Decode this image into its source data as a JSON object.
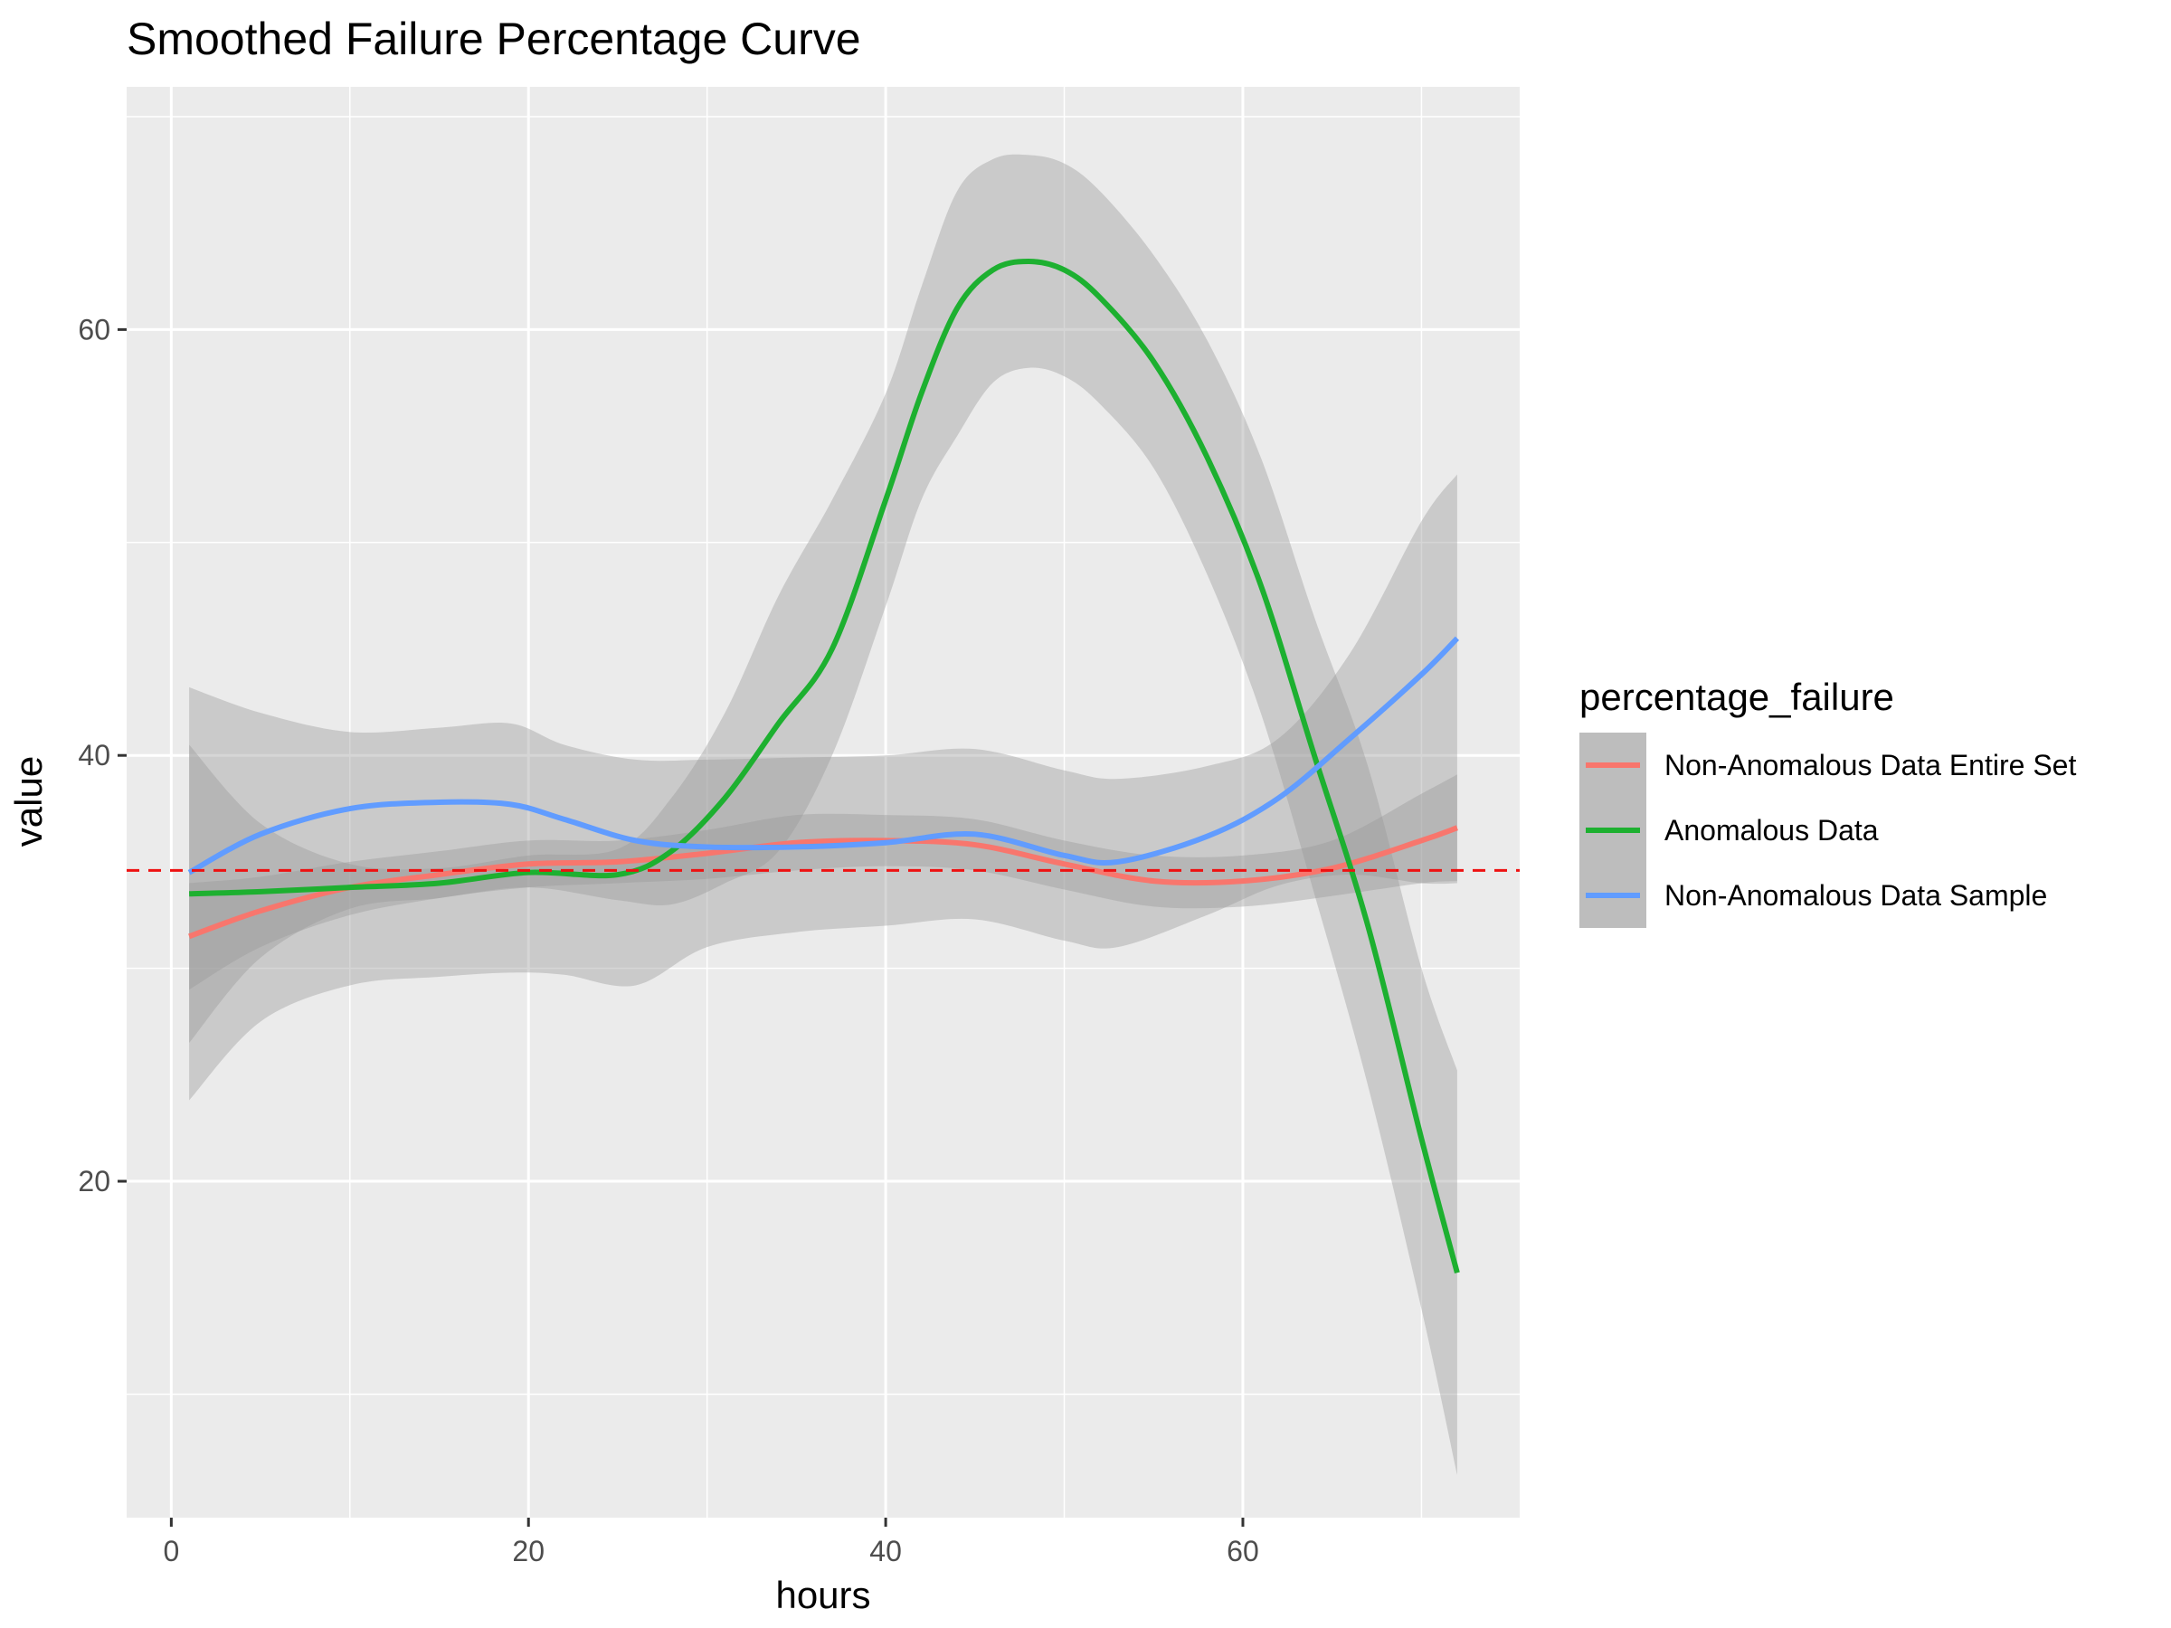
{
  "chart_data": {
    "type": "line",
    "title": "Smoothed Failure Percentage Curve",
    "xlabel": "hours",
    "ylabel": "value",
    "xlim": [
      -2.5,
      75.5
    ],
    "ylim": [
      4.2,
      71.4
    ],
    "x_ticks": [
      0,
      20,
      40,
      60
    ],
    "y_ticks": [
      20,
      40,
      60
    ],
    "grid": true,
    "reference_line": {
      "y": 34.6,
      "color": "#ee1111",
      "style": "dashed"
    },
    "legend": {
      "title": "percentage_failure",
      "position": "right"
    },
    "series": [
      {
        "name": "Non-Anomalous Data Entire Set",
        "color": "#f8766d",
        "x": [
          1,
          5,
          10,
          15,
          20,
          25,
          30,
          35,
          40,
          45,
          50,
          55,
          60,
          65,
          70,
          72
        ],
        "y": [
          31.5,
          32.7,
          33.8,
          34.4,
          34.9,
          35.0,
          35.4,
          35.9,
          36.0,
          35.8,
          34.9,
          34.1,
          34.1,
          34.7,
          36.0,
          36.6
        ],
        "ci_lower": [
          29.0,
          31.0,
          32.5,
          33.3,
          33.8,
          34.0,
          34.2,
          34.6,
          34.8,
          34.6,
          33.7,
          32.9,
          32.9,
          33.4,
          34.0,
          34.1
        ],
        "ci_upper": [
          34.0,
          34.3,
          35.0,
          35.5,
          36.0,
          36.0,
          36.5,
          37.2,
          37.2,
          37.0,
          36.0,
          35.3,
          35.3,
          36.0,
          38.2,
          39.1
        ]
      },
      {
        "name": "Anomalous Data",
        "color": "#1db030",
        "x": [
          1,
          5,
          10,
          15,
          20,
          25,
          28,
          31,
          34,
          37,
          40,
          42,
          44,
          46,
          48,
          50,
          52,
          55,
          58,
          61,
          64,
          67,
          70,
          72
        ],
        "y": [
          33.5,
          33.6,
          33.8,
          34.0,
          34.5,
          34.4,
          35.5,
          38.0,
          41.5,
          45.0,
          52.0,
          57.0,
          61.0,
          62.8,
          63.2,
          62.8,
          61.5,
          58.5,
          54.0,
          48.0,
          40.0,
          32.0,
          22.0,
          15.7
        ],
        "ci_lower": [
          26.5,
          30.5,
          32.8,
          33.3,
          33.8,
          33.2,
          33.0,
          34.0,
          35.5,
          40.0,
          47.0,
          52.0,
          55.0,
          57.5,
          58.2,
          57.8,
          56.5,
          53.5,
          48.5,
          42.0,
          33.5,
          24.5,
          14.0,
          6.2
        ],
        "ci_upper": [
          40.5,
          36.8,
          34.9,
          34.7,
          35.3,
          35.6,
          38.0,
          42.0,
          47.5,
          52.0,
          57.0,
          62.0,
          66.5,
          68.0,
          68.2,
          67.8,
          66.5,
          63.5,
          59.5,
          54.0,
          46.5,
          39.5,
          30.0,
          25.2
        ]
      },
      {
        "name": "Non-Anomalous Data Sample",
        "color": "#619cff",
        "x": [
          1,
          5,
          10,
          15,
          19,
          22,
          26,
          30,
          35,
          40,
          45,
          50,
          53,
          58,
          62,
          66,
          70,
          72
        ],
        "y": [
          34.5,
          36.3,
          37.5,
          37.8,
          37.7,
          37.0,
          36.0,
          35.7,
          35.7,
          35.9,
          36.3,
          35.3,
          35.0,
          36.2,
          38.0,
          40.8,
          43.8,
          45.5
        ],
        "ci_lower": [
          23.8,
          27.5,
          29.2,
          29.6,
          29.8,
          29.7,
          29.2,
          31.0,
          31.7,
          32.0,
          32.3,
          31.3,
          31.0,
          32.5,
          33.9,
          34.4,
          34.0,
          34.0
        ],
        "ci_upper": [
          43.2,
          42.0,
          41.1,
          41.3,
          41.5,
          40.5,
          39.8,
          39.8,
          39.9,
          40.0,
          40.3,
          39.3,
          38.9,
          39.5,
          40.8,
          44.8,
          51.0,
          53.2
        ]
      }
    ]
  }
}
